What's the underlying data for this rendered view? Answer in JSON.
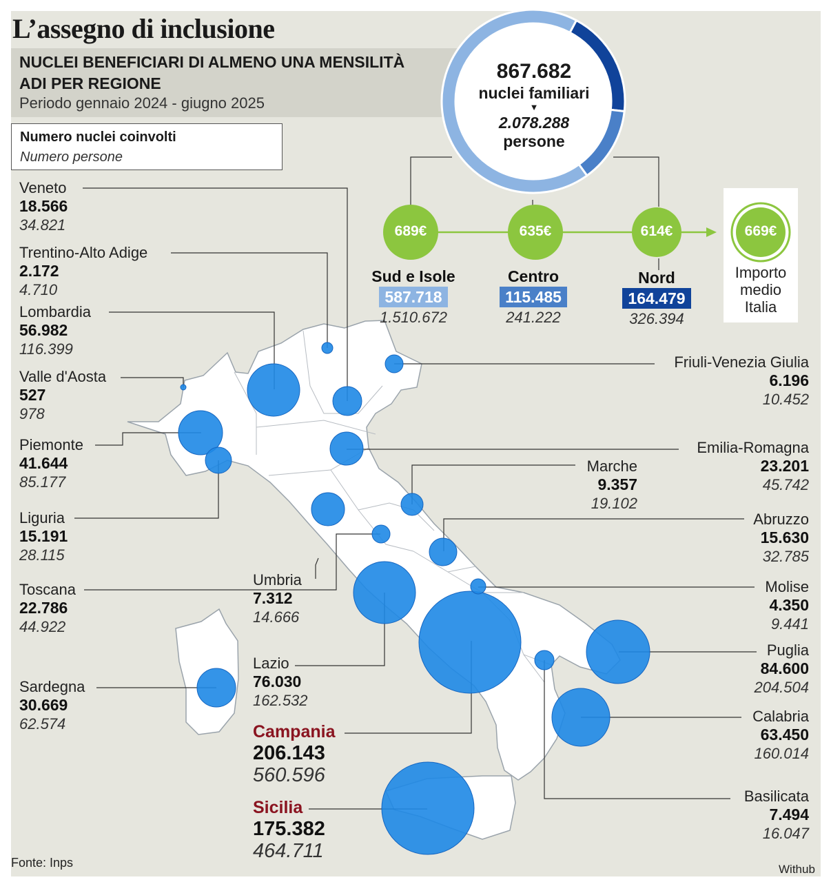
{
  "title": "L’assegno di inclusione",
  "subtitle": "NUCLEI BENEFICIARI DI ALMENO UNA MENSILITÀ ADI PER REGIONE",
  "period": "Periodo gennaio 2024 - giugno 2025",
  "legend": {
    "families_label": "Numero nuclei coinvolti",
    "persons_label": "Numero persone"
  },
  "total": {
    "families": "867.682",
    "families_label": "nuclei familiari",
    "persons": "2.078.288",
    "persons_label": "persone"
  },
  "areas": [
    {
      "name": "Sud e Isole",
      "families": "587.718",
      "persons": "1.510.672",
      "amount": "689€",
      "value": 587718,
      "color": "#8db4e2"
    },
    {
      "name": "Centro",
      "families": "115.485",
      "persons": "241.222",
      "amount": "635€",
      "value": 115485,
      "color": "#4a80c8"
    },
    {
      "name": "Nord",
      "families": "164.479",
      "persons": "326.394",
      "amount": "614€",
      "value": 164479,
      "color": "#10439a"
    }
  ],
  "italy_average": {
    "amount": "669€",
    "label": "Importo medio Italia"
  },
  "colors": {
    "bubble": "#1e88e5",
    "amount_circle": "#8cc63f",
    "highlight_name": "#8a1420"
  },
  "chart_data": {
    "type": "bubble-map",
    "title": "L’assegno di inclusione",
    "subtitle": "NUCLEI BENEFICIARI DI ALMENO UNA MENSILITÀ ADI PER REGIONE",
    "regions": [
      {
        "name": "Veneto",
        "families": 18566,
        "persons": 34821,
        "families_label": "18.566",
        "persons_label": "34.821"
      },
      {
        "name": "Trentino-Alto Adige",
        "families": 2172,
        "persons": 4710,
        "families_label": "2.172",
        "persons_label": "4.710"
      },
      {
        "name": "Lombardia",
        "families": 56982,
        "persons": 116399,
        "families_label": "56.982",
        "persons_label": "116.399"
      },
      {
        "name": "Valle d'Aosta",
        "families": 527,
        "persons": 978,
        "families_label": "527",
        "persons_label": "978"
      },
      {
        "name": "Piemonte",
        "families": 41644,
        "persons": 85177,
        "families_label": "41.644",
        "persons_label": "85.177"
      },
      {
        "name": "Liguria",
        "families": 15191,
        "persons": 28115,
        "families_label": "15.191",
        "persons_label": "28.115"
      },
      {
        "name": "Toscana",
        "families": 22786,
        "persons": 44922,
        "families_label": "22.786",
        "persons_label": "44.922"
      },
      {
        "name": "Sardegna",
        "families": 30669,
        "persons": 62574,
        "families_label": "30.669",
        "persons_label": "62.574"
      },
      {
        "name": "Umbria",
        "families": 7312,
        "persons": 14666,
        "families_label": "7.312",
        "persons_label": "14.666"
      },
      {
        "name": "Lazio",
        "families": 76030,
        "persons": 162532,
        "families_label": "76.030",
        "persons_label": "162.532"
      },
      {
        "name": "Campania",
        "families": 206143,
        "persons": 560596,
        "families_label": "206.143",
        "persons_label": "560.596"
      },
      {
        "name": "Sicilia",
        "families": 175382,
        "persons": 464711,
        "families_label": "175.382",
        "persons_label": "464.711"
      },
      {
        "name": "Friuli-Venezia Giulia",
        "families": 6196,
        "persons": 10452,
        "families_label": "6.196",
        "persons_label": "10.452"
      },
      {
        "name": "Emilia-Romagna",
        "families": 23201,
        "persons": 45742,
        "families_label": "23.201",
        "persons_label": "45.742"
      },
      {
        "name": "Marche",
        "families": 9357,
        "persons": 19102,
        "families_label": "9.357",
        "persons_label": "19.102"
      },
      {
        "name": "Abruzzo",
        "families": 15630,
        "persons": 32785,
        "families_label": "15.630",
        "persons_label": "32.785"
      },
      {
        "name": "Molise",
        "families": 4350,
        "persons": 9441,
        "families_label": "4.350",
        "persons_label": "9.441"
      },
      {
        "name": "Puglia",
        "families": 84600,
        "persons": 204504,
        "families_label": "84.600",
        "persons_label": "204.504"
      },
      {
        "name": "Calabria",
        "families": 63450,
        "persons": 160014,
        "families_label": "63.450",
        "persons_label": "160.014"
      },
      {
        "name": "Basilicata",
        "families": 7494,
        "persons": 16047,
        "families_label": "7.494",
        "persons_label": "16.047"
      }
    ]
  },
  "source": "Fonte: Inps",
  "credit": "Withub"
}
